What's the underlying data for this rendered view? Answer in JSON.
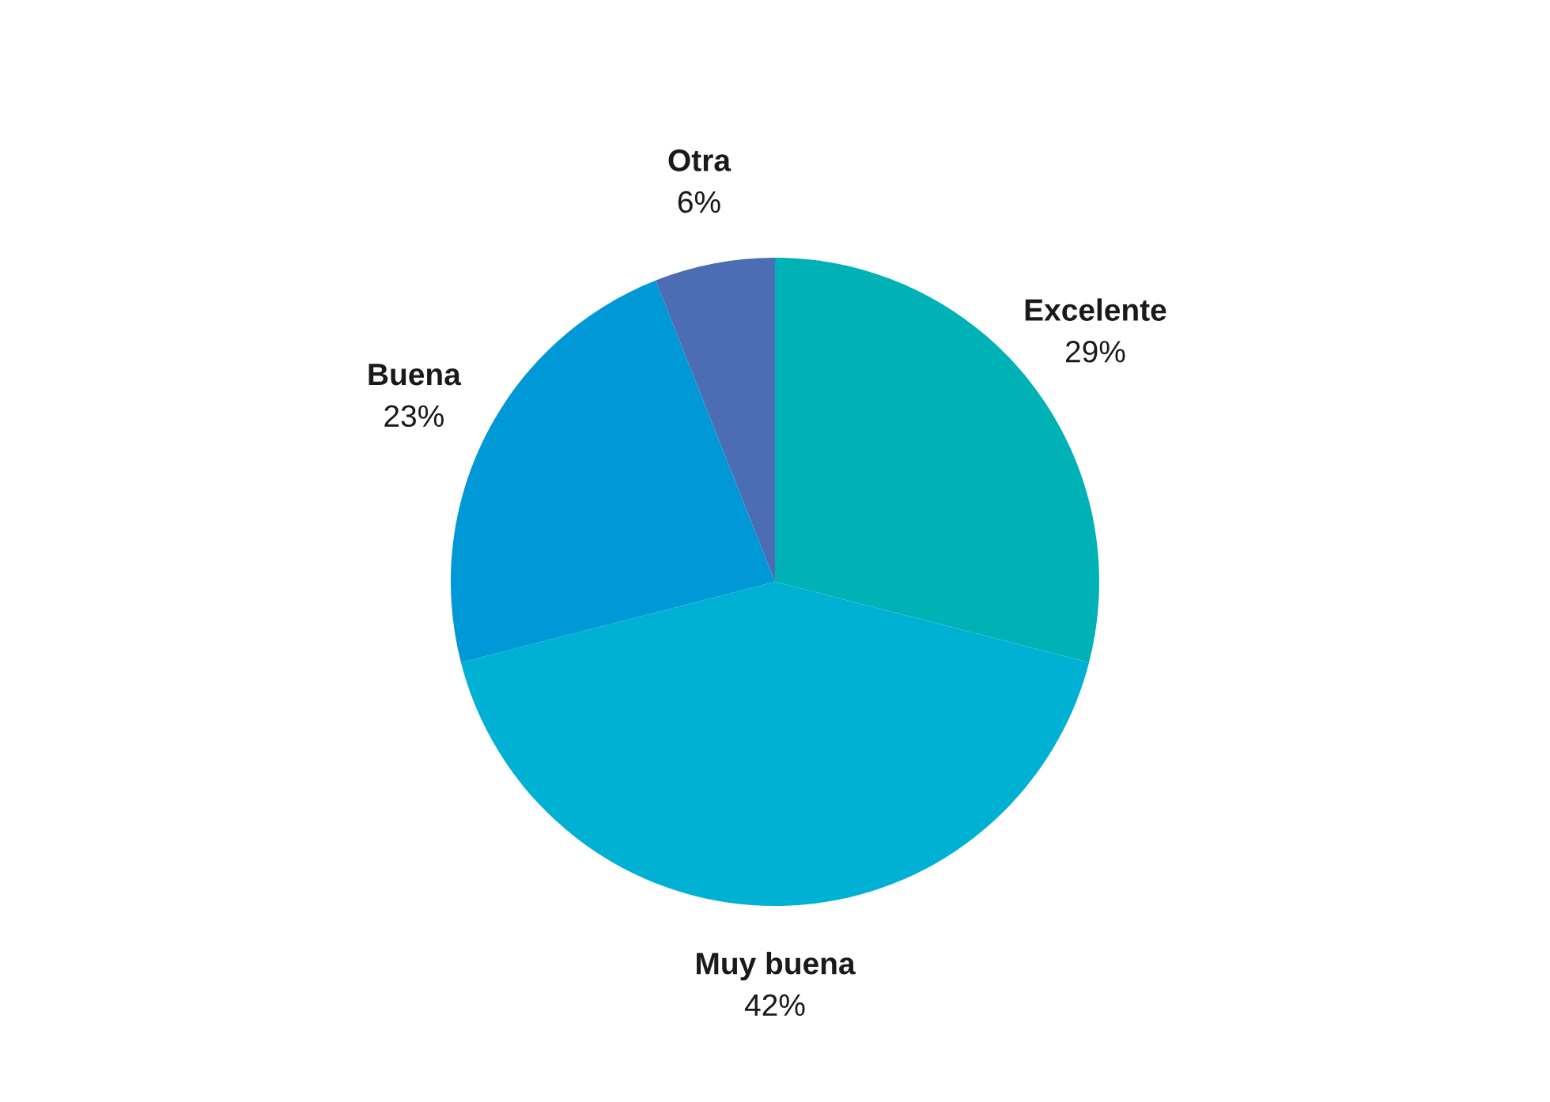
{
  "chart_data": {
    "type": "pie",
    "categories": [
      "Excelente",
      "Muy buena",
      "Buena",
      "Otra"
    ],
    "values": [
      29,
      42,
      23,
      6
    ],
    "colors": [
      "#00b2b5",
      "#00b1d3",
      "#0098d6",
      "#4c6cb3"
    ],
    "value_labels": [
      "29%",
      "42%",
      "23%",
      "6%"
    ],
    "legend": false
  }
}
